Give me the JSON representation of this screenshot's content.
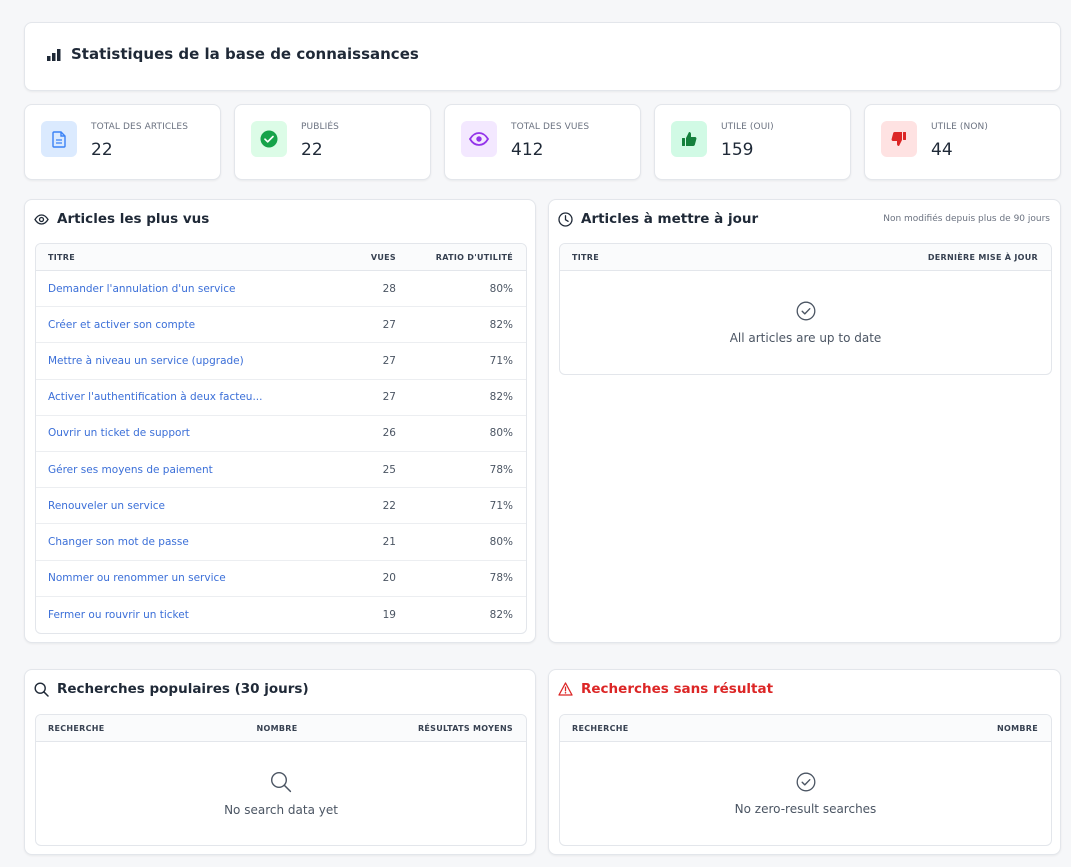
{
  "header": {
    "title": "Statistiques de la base de connaissances",
    "icon": "bar-chart-icon"
  },
  "stats": [
    {
      "label": "TOTAL DES ARTICLES",
      "value": "22",
      "icon": "document-icon",
      "color": "#3b82f6",
      "bg": "#dbeafe"
    },
    {
      "label": "PUBLIÉS",
      "value": "22",
      "icon": "check-circle-icon",
      "color": "#16a34a",
      "bg": "#dcfce7"
    },
    {
      "label": "TOTAL DES VUES",
      "value": "412",
      "icon": "eye-icon",
      "color": "#9333ea",
      "bg": "#f3e8ff"
    },
    {
      "label": "UTILE (OUI)",
      "value": "159",
      "icon": "thumbs-up-icon",
      "color": "#15803d",
      "bg": "#d1fae5"
    },
    {
      "label": "UTILE (NON)",
      "value": "44",
      "icon": "thumbs-down-icon",
      "color": "#dc2626",
      "bg": "#fee2e2"
    }
  ],
  "most_viewed": {
    "title": "Articles les plus vus",
    "columns": {
      "title": "TITRE",
      "views": "VUES",
      "ratio": "RATIO D'UTILITÉ"
    },
    "rows": [
      {
        "title": "Demander l'annulation d'un service",
        "views": "28",
        "ratio": "80%"
      },
      {
        "title": "Créer et activer son compte",
        "views": "27",
        "ratio": "82%"
      },
      {
        "title": "Mettre à niveau un service (upgrade)",
        "views": "27",
        "ratio": "71%"
      },
      {
        "title": "Activer l'authentification à deux facteu...",
        "views": "27",
        "ratio": "82%"
      },
      {
        "title": "Ouvrir un ticket de support",
        "views": "26",
        "ratio": "80%"
      },
      {
        "title": "Gérer ses moyens de paiement",
        "views": "25",
        "ratio": "78%"
      },
      {
        "title": "Renouveler un service",
        "views": "22",
        "ratio": "71%"
      },
      {
        "title": "Changer son mot de passe",
        "views": "21",
        "ratio": "80%"
      },
      {
        "title": "Nommer ou renommer un service",
        "views": "20",
        "ratio": "78%"
      },
      {
        "title": "Fermer ou rouvrir un ticket",
        "views": "19",
        "ratio": "82%"
      }
    ]
  },
  "to_update": {
    "title": "Articles à mettre à jour",
    "subtitle": "Non modifiés depuis plus de 90 jours",
    "columns": {
      "title": "TITRE",
      "last_update": "DERNIÈRE MISE À JOUR"
    },
    "empty_text": "All articles are up to date"
  },
  "popular_searches": {
    "title": "Recherches populaires (30 jours)",
    "columns": {
      "search": "RECHERCHE",
      "count": "NOMBRE",
      "avg_results": "RÉSULTATS MOYENS"
    },
    "empty_text": "No search data yet"
  },
  "zero_result": {
    "title": "Recherches sans résultat",
    "title_color": "#dc2626",
    "columns": {
      "search": "RECHERCHE",
      "count": "NOMBRE"
    },
    "empty_text": "No zero-result searches"
  }
}
